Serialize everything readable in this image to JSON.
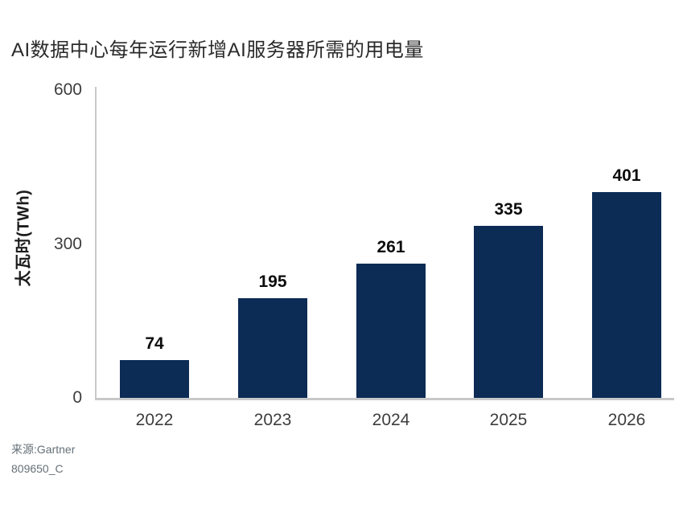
{
  "chart_data": {
    "type": "bar",
    "title": "AI数据中心每年运行新增AI服务器所需的用电量",
    "ylabel": "太瓦时(TWh)",
    "xlabel": "",
    "categories": [
      "2022",
      "2023",
      "2024",
      "2025",
      "2026"
    ],
    "values": [
      74,
      195,
      261,
      335,
      401
    ],
    "yticks": [
      0,
      300,
      600
    ],
    "ylim": [
      0,
      600
    ],
    "grid": "off",
    "legend": "none",
    "bar_color": "#0c2b55",
    "source": "来源:Gartner",
    "doc_id": "809650_C"
  }
}
